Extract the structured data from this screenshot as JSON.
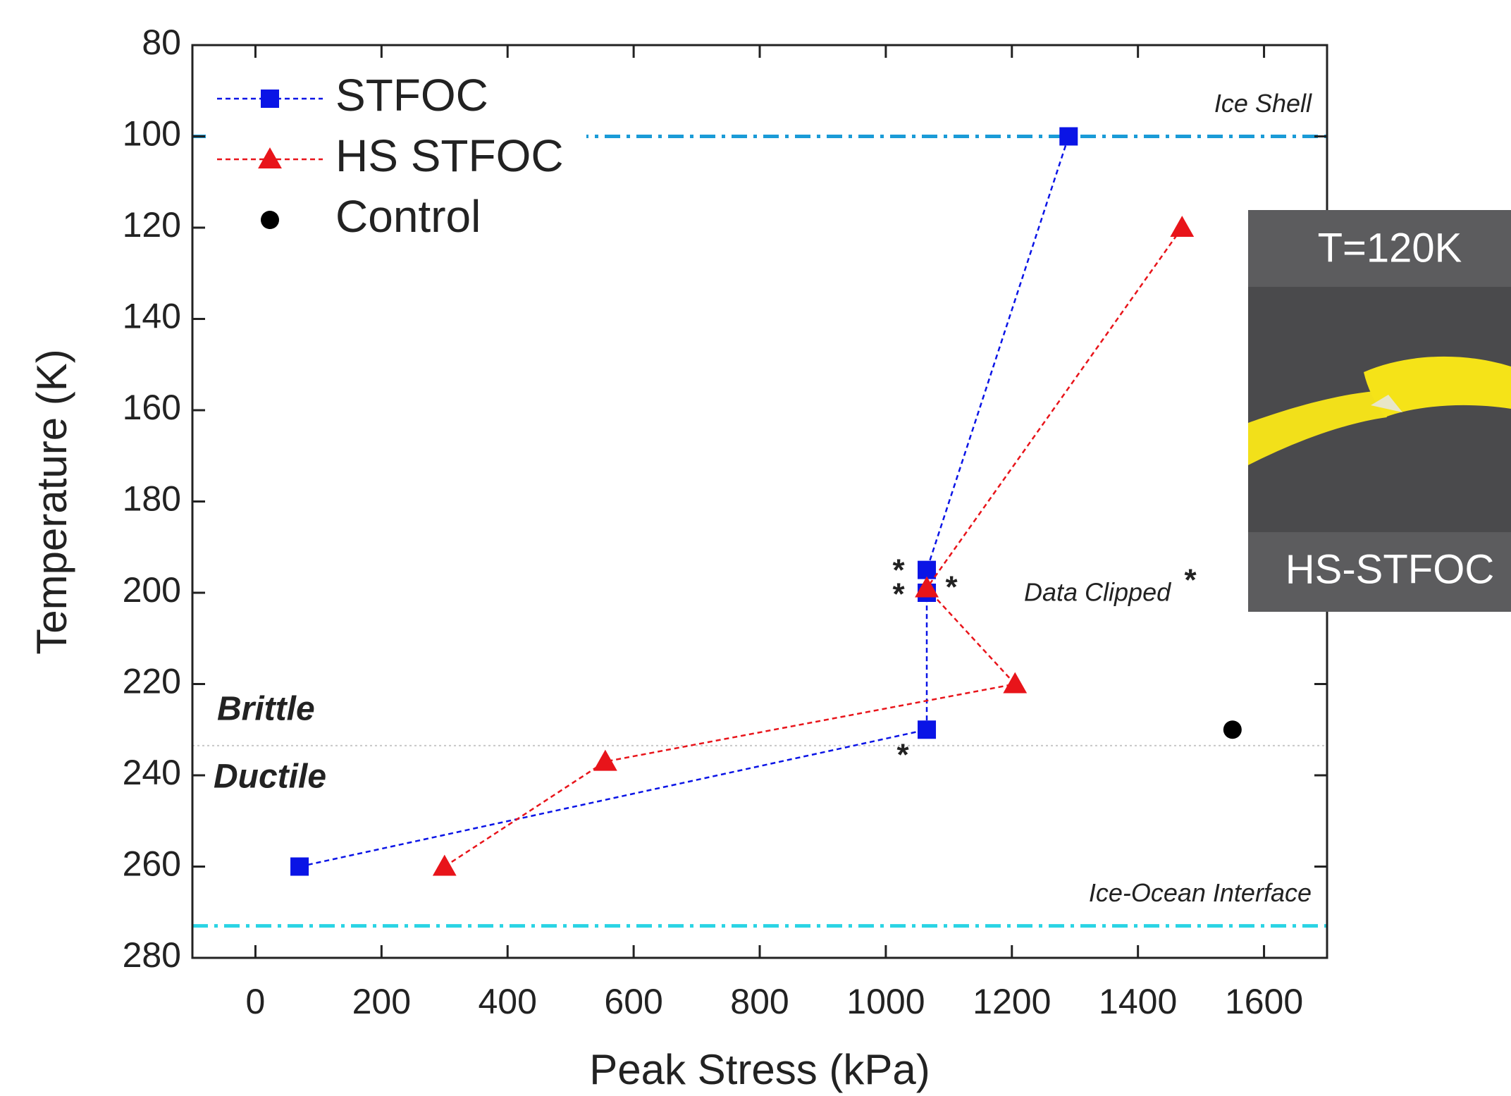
{
  "chart_data": {
    "type": "scatter",
    "x_label": "Peak Stress (kPa)",
    "y_label": "Temperature (K)",
    "xlim": [
      -100,
      1700
    ],
    "xticks": [
      0,
      200,
      400,
      600,
      800,
      1000,
      1200,
      1400,
      1600
    ],
    "ylim": [
      80,
      280
    ],
    "yticks": [
      80,
      100,
      120,
      140,
      160,
      180,
      200,
      220,
      240,
      260,
      280
    ],
    "y_reversed": true,
    "legend": "upper left",
    "series": [
      {
        "name": "STFOC",
        "color": "#0a14e6",
        "marker": "square",
        "line": true,
        "x": [
          70,
          1065,
          1065,
          1065,
          1290
        ],
        "values": [
          260,
          230,
          200,
          195,
          100
        ]
      },
      {
        "name": "HS STFOC",
        "color": "#e8141a",
        "marker": "triangle",
        "line": true,
        "x": [
          300,
          555,
          1205,
          1065,
          1470
        ],
        "values": [
          260,
          237,
          220,
          199,
          120
        ]
      },
      {
        "name": "Control",
        "color": "#000000",
        "marker": "circle",
        "line": false,
        "x": [
          1550
        ],
        "values": [
          230
        ]
      }
    ],
    "reference_lines": [
      {
        "value": 100,
        "color": "#1a9bd7",
        "style": "dashdot",
        "label": "Ice Shell"
      },
      {
        "value": 273,
        "color": "#2ad4e4",
        "style": "dashdot",
        "label": "Ice-Ocean Interface"
      },
      {
        "value": 233.5,
        "color": "#c8c8c8",
        "style": "dotted"
      }
    ],
    "annotations": {
      "brittle": "Brittle",
      "ductile": "Ductile",
      "clipped": "Data Clipped",
      "clipped_marker": "*"
    },
    "inset": {
      "top_label": "T=120K",
      "bottom_label": "HS-STFOC"
    }
  }
}
